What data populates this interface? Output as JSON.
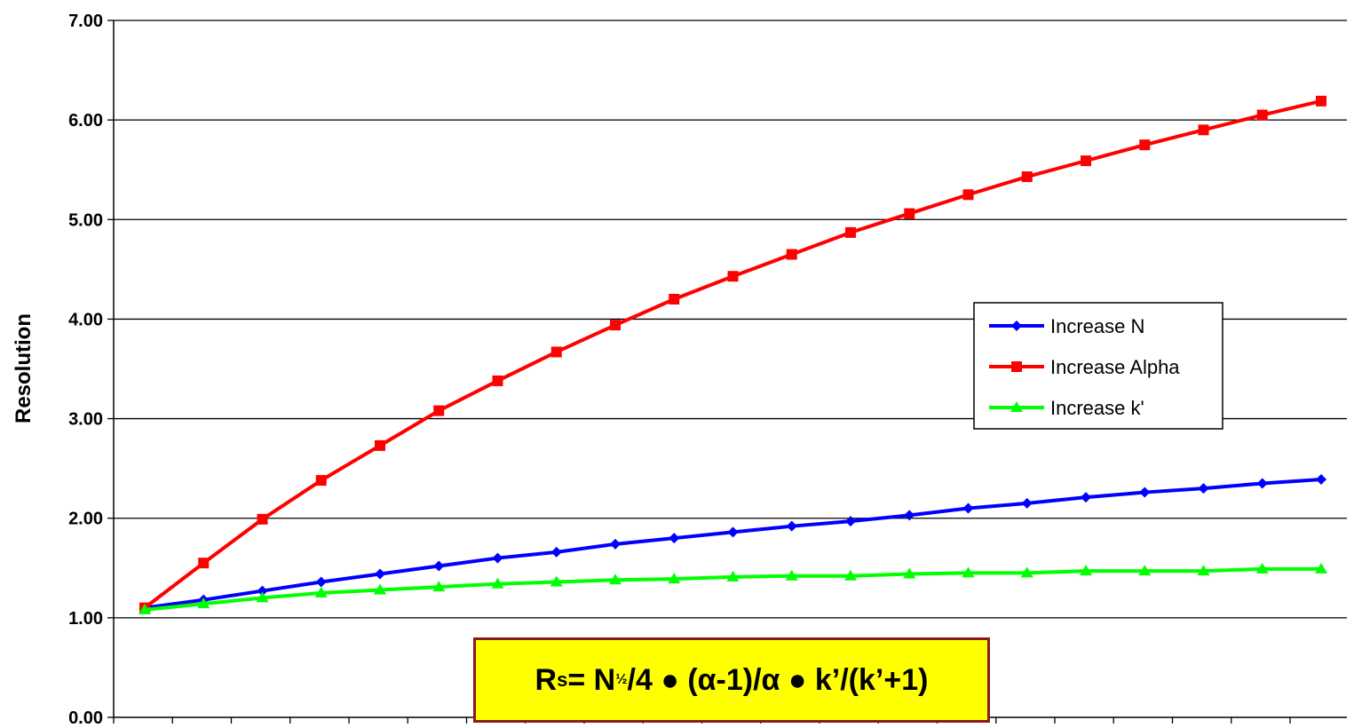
{
  "chart_data": {
    "type": "line",
    "title": "",
    "xlabel": "",
    "ylabel": "Resolution",
    "ylim": [
      0,
      7
    ],
    "yticks": [
      "0.00",
      "1.00",
      "2.00",
      "3.00",
      "4.00",
      "5.00",
      "6.00",
      "7.00"
    ],
    "x": [
      1,
      2,
      3,
      4,
      5,
      6,
      7,
      8,
      9,
      10,
      11,
      12,
      13,
      14,
      15,
      16,
      17,
      18,
      19,
      20,
      21
    ],
    "grid": true,
    "legend_position": "center-right",
    "series": [
      {
        "name": "Increase N",
        "color": "#0000ff",
        "marker": "diamond",
        "values": [
          1.1,
          1.18,
          1.27,
          1.36,
          1.44,
          1.52,
          1.6,
          1.66,
          1.74,
          1.8,
          1.86,
          1.92,
          1.97,
          2.03,
          2.1,
          2.15,
          2.21,
          2.26,
          2.3,
          2.35,
          2.39
        ]
      },
      {
        "name": "Increase Alpha",
        "color": "#ff0000",
        "marker": "square",
        "values": [
          1.1,
          1.55,
          1.99,
          2.38,
          2.73,
          3.08,
          3.38,
          3.67,
          3.94,
          4.2,
          4.43,
          4.65,
          4.87,
          5.06,
          5.25,
          5.43,
          5.59,
          5.75,
          5.9,
          6.05,
          6.19
        ]
      },
      {
        "name": "Increase k'",
        "color": "#00ff00",
        "marker": "triangle",
        "values": [
          1.08,
          1.14,
          1.2,
          1.25,
          1.28,
          1.31,
          1.34,
          1.36,
          1.38,
          1.39,
          1.41,
          1.42,
          1.42,
          1.44,
          1.45,
          1.45,
          1.47,
          1.47,
          1.47,
          1.49,
          1.49
        ]
      }
    ]
  },
  "formula": {
    "r": "R",
    "s": "s",
    "eq_n": " = N",
    "half": "½",
    "rest": "/4 ● (α-1)/α ● k’/(k’+1)"
  }
}
